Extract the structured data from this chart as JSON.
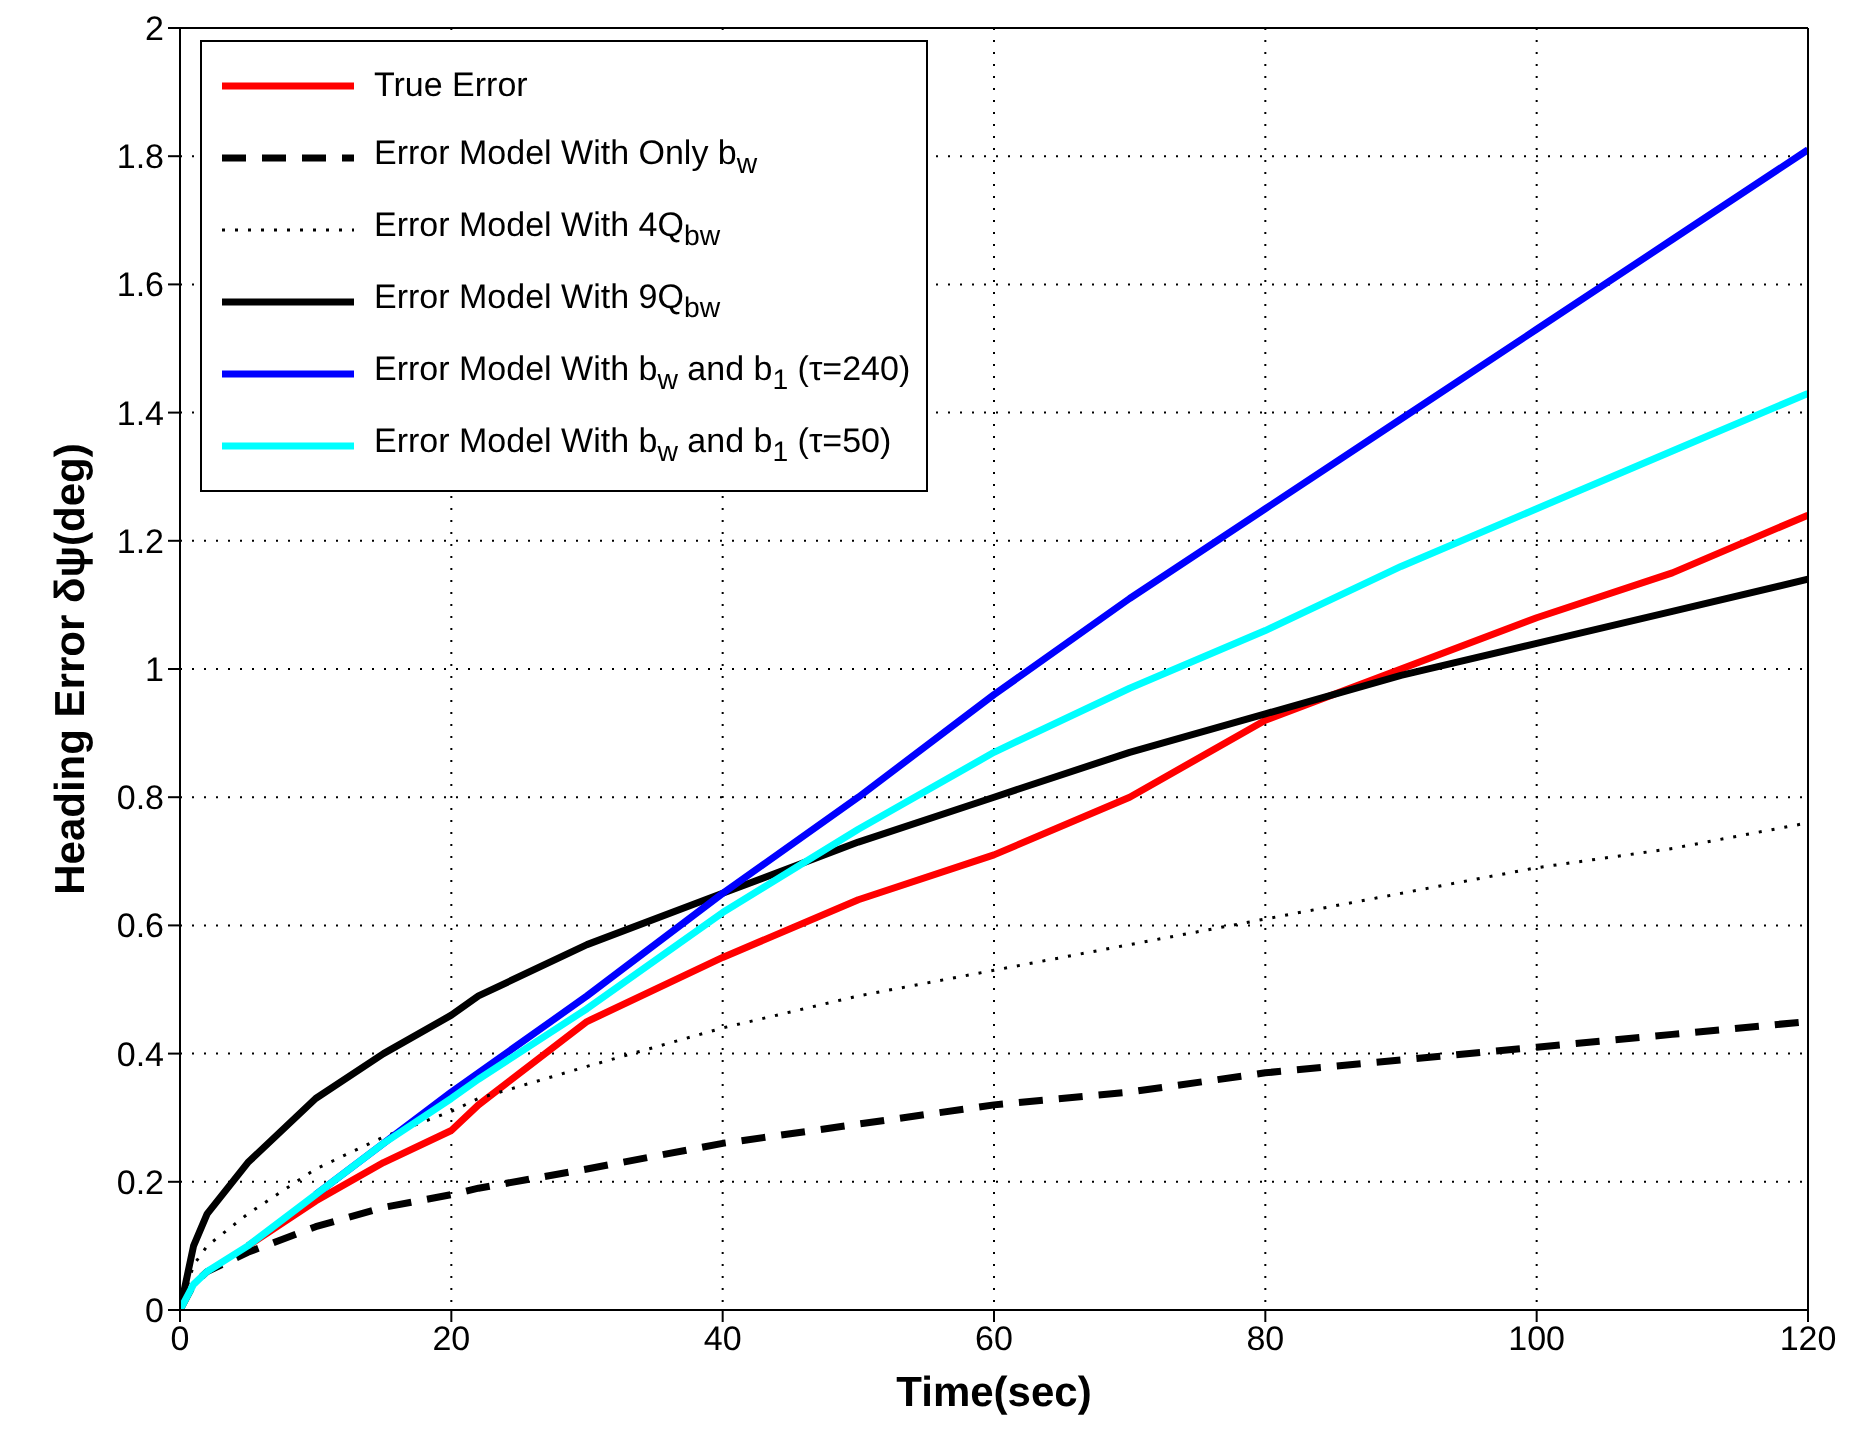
{
  "chart_data": {
    "type": "line",
    "xlabel": "Time(sec)",
    "ylabel": "Heading Error δψ(deg)",
    "xlim": [
      0,
      120
    ],
    "ylim": [
      0,
      2
    ],
    "xticks": [
      0,
      20,
      40,
      60,
      80,
      100,
      120
    ],
    "yticks": [
      0,
      0.2,
      0.4,
      0.6,
      0.8,
      1,
      1.2,
      1.4,
      1.6,
      1.8,
      2
    ],
    "grid": true,
    "legend": "top left",
    "marker": "none",
    "x": [
      0,
      1,
      2,
      5,
      10,
      15,
      20,
      22,
      30,
      40,
      50,
      60,
      70,
      80,
      90,
      100,
      110,
      120
    ],
    "series": [
      {
        "name": "True Error",
        "color": "#ff0000",
        "line_style": "solid",
        "values": [
          null,
          null,
          null,
          0.1,
          0.17,
          0.23,
          0.28,
          0.32,
          0.45,
          0.55,
          0.64,
          0.71,
          0.8,
          0.92,
          1.0,
          1.08,
          1.15,
          1.24
        ]
      },
      {
        "name": "Error Model With Only b$_{w}$",
        "color": "#000000",
        "line_style": "dashed",
        "values": [
          0,
          0.04,
          0.06,
          0.09,
          0.13,
          0.16,
          0.18,
          0.19,
          0.22,
          0.26,
          0.29,
          0.32,
          0.34,
          0.37,
          0.39,
          0.41,
          0.43,
          0.45
        ]
      },
      {
        "name": "Error Model With 4Q$_{b}$$_{w}$",
        "color": "#000000",
        "line_style": "dotted",
        "values": [
          0,
          0.07,
          0.1,
          0.15,
          0.22,
          0.27,
          0.31,
          0.33,
          0.38,
          0.44,
          0.49,
          0.53,
          0.57,
          0.61,
          0.65,
          0.69,
          0.72,
          0.76
        ]
      },
      {
        "name": "Error Model With 9Q$_{b}$$_{w}$",
        "color": "#000000",
        "line_style": "solid",
        "values": [
          0,
          0.1,
          0.15,
          0.23,
          0.33,
          0.4,
          0.46,
          0.49,
          0.57,
          0.65,
          0.73,
          0.8,
          0.87,
          0.93,
          0.99,
          1.04,
          1.09,
          1.14
        ]
      },
      {
        "name": "Error Model With b$_{w}$ and b$_{1}$ (τ=240)",
        "color": "#0000ff",
        "line_style": "solid",
        "values": [
          null,
          null,
          null,
          null,
          0.18,
          0.26,
          0.34,
          0.37,
          0.49,
          0.65,
          0.8,
          0.96,
          1.11,
          1.25,
          1.39,
          1.53,
          1.67,
          1.81
        ]
      },
      {
        "name": "Error Model With b$_{w}$ and b$_{1}$ (τ=50)",
        "color": "#00ffff",
        "line_style": "solid",
        "values": [
          0,
          0.04,
          0.06,
          0.1,
          0.18,
          0.26,
          0.33,
          0.36,
          0.47,
          0.62,
          0.75,
          0.87,
          0.97,
          1.06,
          1.16,
          1.25,
          1.34,
          1.43
        ]
      }
    ]
  }
}
